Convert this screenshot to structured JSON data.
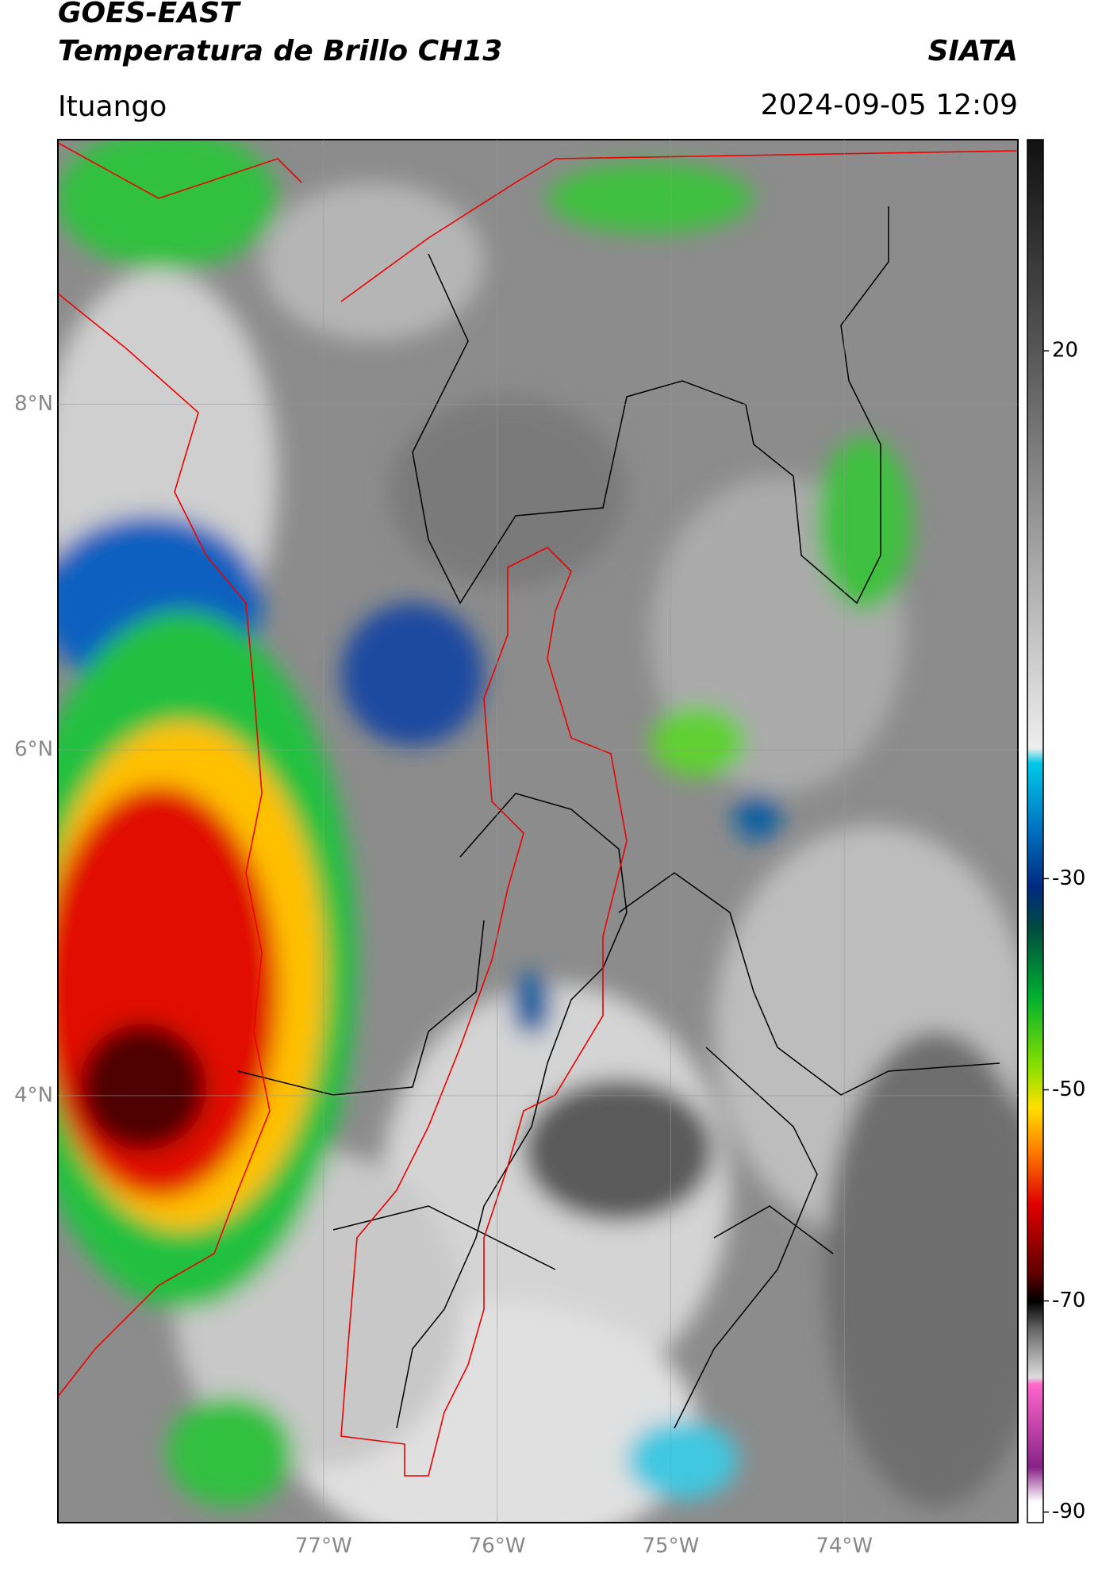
{
  "header": {
    "title": "GOES-EAST",
    "subtitle": "Temperatura de Brillo CH13",
    "source": "SIATA",
    "location": "Ituango",
    "datetime": "2024-09-05 12:09"
  },
  "chart_data": {
    "type": "map",
    "xlim": [
      -78.53,
      -73.0
    ],
    "ylim": [
      1.53,
      9.53
    ],
    "xticks": [
      {
        "value": -77,
        "label": "77°W"
      },
      {
        "value": -76,
        "label": "76°W"
      },
      {
        "value": -75,
        "label": "75°W"
      },
      {
        "value": -74,
        "label": "74°W"
      }
    ],
    "yticks": [
      {
        "value": 4,
        "label": "4°N"
      },
      {
        "value": 6,
        "label": "6°N"
      },
      {
        "value": 8,
        "label": "8°N"
      }
    ],
    "grid": true,
    "colorbar": {
      "lim": [
        -91,
        40
      ],
      "ticks": [
        -90,
        -70,
        -50,
        -30,
        20
      ]
    }
  }
}
